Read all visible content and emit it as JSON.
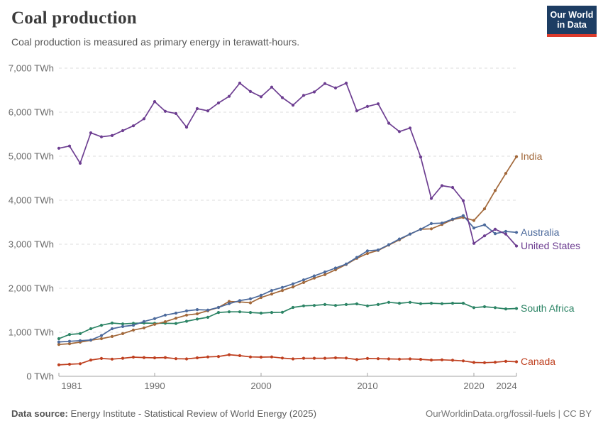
{
  "header": {
    "title": "Coal production",
    "subtitle": "Coal production is measured as primary energy in terawatt-hours.",
    "logo": {
      "line1": "Our World",
      "line2": "in Data",
      "bg": "#1d3d63",
      "accent": "#dc3a2b"
    }
  },
  "footer": {
    "source_label": "Data source:",
    "source_text": " Energy Institute - Statistical Review of World Energy (2025)",
    "right_text": "OurWorldinData.org/fossil-fuels | CC BY"
  },
  "chart_data": {
    "type": "line",
    "title": "Coal production",
    "unit": "TWh",
    "xlim": [
      1981,
      2024
    ],
    "ylim": [
      0,
      7000
    ],
    "grid": "dashed-horizontal",
    "legend_position": "right-end-labels",
    "y_ticks": [
      0,
      1000,
      2000,
      3000,
      4000,
      5000,
      6000,
      7000
    ],
    "y_tick_suffix": " TWh",
    "x_ticks": [
      {
        "label": "1981",
        "year": 1981,
        "nudge": 18
      },
      {
        "label": "1990",
        "year": 1990,
        "nudge": 0
      },
      {
        "label": "2000",
        "year": 2000,
        "nudge": 0
      },
      {
        "label": "2010",
        "year": 2010,
        "nudge": 0
      },
      {
        "label": "2020",
        "year": 2020,
        "nudge": 0
      },
      {
        "label": "2024",
        "year": 2024,
        "nudge": -14
      }
    ],
    "x": [
      1981,
      1982,
      1983,
      1984,
      1985,
      1986,
      1987,
      1988,
      1989,
      1990,
      1991,
      1992,
      1993,
      1994,
      1995,
      1996,
      1997,
      1998,
      1999,
      2000,
      2001,
      2002,
      2003,
      2004,
      2005,
      2006,
      2007,
      2008,
      2009,
      2010,
      2011,
      2012,
      2013,
      2014,
      2015,
      2016,
      2017,
      2018,
      2019,
      2020,
      2021,
      2022,
      2023,
      2024
    ],
    "series": [
      {
        "name": "Canada",
        "color": "#bf4020",
        "values": [
          260,
          275,
          285,
          370,
          405,
          390,
          410,
          435,
          425,
          420,
          425,
          400,
          395,
          420,
          440,
          450,
          490,
          470,
          440,
          435,
          440,
          415,
          395,
          410,
          410,
          410,
          420,
          415,
          380,
          405,
          400,
          395,
          390,
          395,
          385,
          370,
          375,
          365,
          350,
          315,
          310,
          320,
          340,
          330
        ]
      },
      {
        "name": "South Africa",
        "color": "#2c8465",
        "values": [
          855,
          950,
          970,
          1080,
          1160,
          1210,
          1190,
          1205,
          1210,
          1205,
          1205,
          1200,
          1250,
          1300,
          1340,
          1450,
          1465,
          1465,
          1450,
          1435,
          1450,
          1455,
          1565,
          1600,
          1610,
          1630,
          1610,
          1630,
          1645,
          1600,
          1630,
          1680,
          1660,
          1680,
          1650,
          1660,
          1650,
          1660,
          1660,
          1560,
          1580,
          1560,
          1530,
          1540
        ]
      },
      {
        "name": "India",
        "color": "#a2683a",
        "values": [
          725,
          740,
          775,
          820,
          855,
          905,
          970,
          1050,
          1100,
          1180,
          1240,
          1320,
          1390,
          1420,
          1490,
          1565,
          1700,
          1690,
          1670,
          1790,
          1870,
          1950,
          2030,
          2130,
          2230,
          2310,
          2420,
          2540,
          2680,
          2790,
          2860,
          2980,
          3100,
          3230,
          3340,
          3350,
          3450,
          3560,
          3610,
          3540,
          3805,
          4220,
          4610,
          4990
        ]
      },
      {
        "name": "Australia",
        "color": "#4c6a9c",
        "values": [
          780,
          795,
          810,
          825,
          925,
          1080,
          1130,
          1160,
          1245,
          1310,
          1390,
          1435,
          1485,
          1515,
          1505,
          1565,
          1650,
          1720,
          1760,
          1840,
          1950,
          2020,
          2100,
          2190,
          2280,
          2370,
          2460,
          2550,
          2700,
          2850,
          2870,
          2990,
          3120,
          3230,
          3340,
          3470,
          3480,
          3570,
          3650,
          3370,
          3440,
          3240,
          3290,
          3270
        ]
      },
      {
        "name": "United States",
        "color": "#6d3e91",
        "values": [
          5180,
          5230,
          4840,
          5530,
          5440,
          5470,
          5580,
          5690,
          5850,
          6240,
          6020,
          5970,
          5660,
          6080,
          6030,
          6210,
          6360,
          6660,
          6470,
          6350,
          6570,
          6330,
          6160,
          6380,
          6460,
          6650,
          6550,
          6660,
          6030,
          6130,
          6190,
          5750,
          5560,
          5640,
          4980,
          4040,
          4330,
          4290,
          3990,
          3020,
          3190,
          3340,
          3230,
          2960
        ]
      }
    ]
  }
}
